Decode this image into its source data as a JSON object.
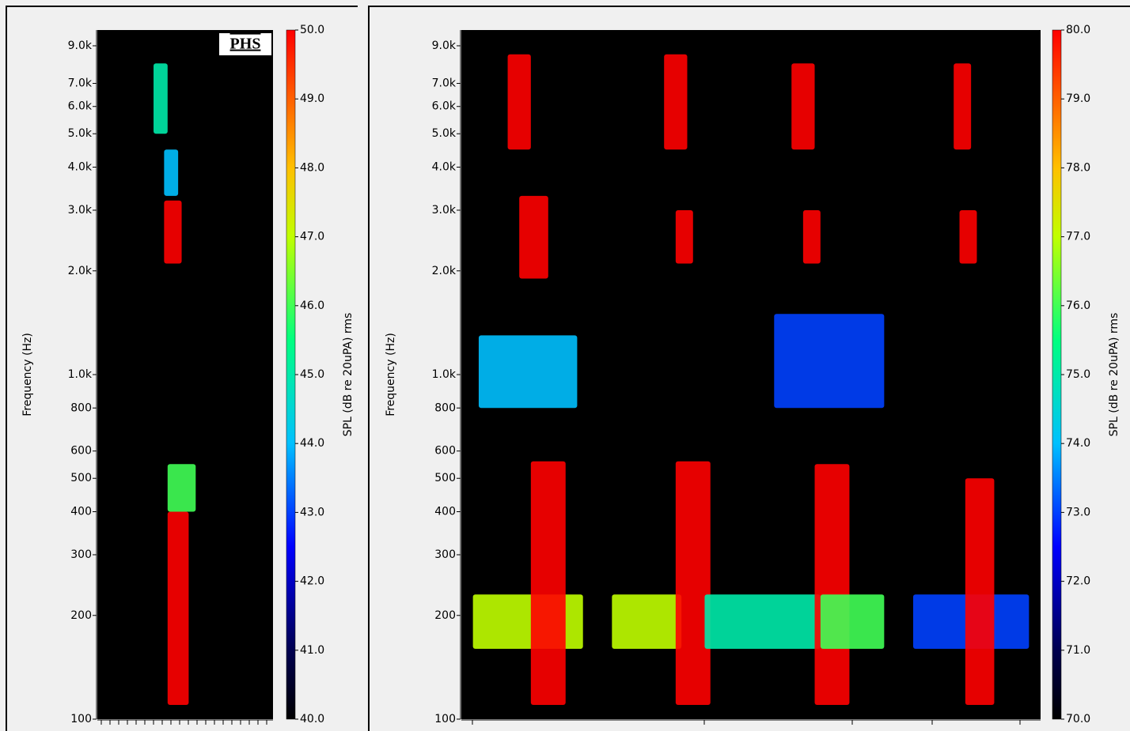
{
  "chart_data": [
    {
      "type": "spectrogram",
      "label": "PHS",
      "ylabel": "Frequency (Hz)",
      "colorbar_label": "SPL (dB re 20uPA) rms",
      "log_y": true,
      "ylim": [
        100,
        10000
      ],
      "yticks": [
        100,
        200,
        300,
        400,
        500,
        600,
        800,
        {
          "value": 1000,
          "label": "1.0k"
        },
        {
          "value": 2000,
          "label": "2.0k"
        },
        {
          "value": 3000,
          "label": "3.0k"
        },
        {
          "value": 4000,
          "label": "4.0k"
        },
        {
          "value": 5000,
          "label": "5.0k"
        },
        {
          "value": 6000,
          "label": "6.0k"
        },
        {
          "value": 7000,
          "label": "7.0k"
        },
        {
          "value": 9000,
          "label": "9.0k"
        }
      ],
      "clim": [
        40,
        50
      ],
      "cticks": [
        {
          "value": 40,
          "label": "40.0"
        },
        {
          "value": 41,
          "label": "41.0"
        },
        {
          "value": 42,
          "label": "42.0"
        },
        {
          "value": 43,
          "label": "43.0"
        },
        {
          "value": 44,
          "label": "44.0"
        },
        {
          "value": 45,
          "label": "45.0"
        },
        {
          "value": 46,
          "label": "46.0"
        },
        {
          "value": 47,
          "label": "47.0"
        },
        {
          "value": 48,
          "label": "48.0"
        },
        {
          "value": 49,
          "label": "49.0"
        },
        {
          "value": 50,
          "label": "50.0"
        }
      ],
      "xlim": [
        0,
        1
      ],
      "events": [
        {
          "t": [
            0.32,
            0.4
          ],
          "f": [
            5000,
            8000
          ],
          "level": 45
        },
        {
          "t": [
            0.38,
            0.46
          ],
          "f": [
            3300,
            4500
          ],
          "level": 44
        },
        {
          "t": [
            0.38,
            0.48
          ],
          "f": [
            2100,
            3200
          ],
          "level": 50
        },
        {
          "t": [
            0.4,
            0.52
          ],
          "f": [
            110,
            400
          ],
          "level": 50
        },
        {
          "t": [
            0.4,
            0.56
          ],
          "f": [
            400,
            550
          ],
          "level": 46
        }
      ]
    },
    {
      "type": "spectrogram",
      "ylabel": "Frequency (Hz)",
      "colorbar_label": "SPL (dB re 20uPA) rms",
      "log_y": true,
      "ylim": [
        100,
        10000
      ],
      "yticks": [
        100,
        200,
        300,
        400,
        500,
        600,
        800,
        {
          "value": 1000,
          "label": "1.0k"
        },
        {
          "value": 2000,
          "label": "2.0k"
        },
        {
          "value": 3000,
          "label": "3.0k"
        },
        {
          "value": 4000,
          "label": "4.0k"
        },
        {
          "value": 5000,
          "label": "5.0k"
        },
        {
          "value": 6000,
          "label": "6.0k"
        },
        {
          "value": 7000,
          "label": "7.0k"
        },
        {
          "value": 9000,
          "label": "9.0k"
        }
      ],
      "clim": [
        70,
        80
      ],
      "cticks": [
        {
          "value": 70,
          "label": "70.0"
        },
        {
          "value": 71,
          "label": "71.0"
        },
        {
          "value": 72,
          "label": "72.0"
        },
        {
          "value": 73,
          "label": "73.0"
        },
        {
          "value": 74,
          "label": "74.0"
        },
        {
          "value": 75,
          "label": "75.0"
        },
        {
          "value": 76,
          "label": "76.0"
        },
        {
          "value": 77,
          "label": "77.0"
        },
        {
          "value": 78,
          "label": "78.0"
        },
        {
          "value": 79,
          "label": "79.0"
        },
        {
          "value": 80,
          "label": "80.0"
        }
      ],
      "xlim": [
        0,
        1
      ],
      "events": [
        {
          "t": [
            0.02,
            0.21
          ],
          "f": [
            160,
            230
          ],
          "level": 77
        },
        {
          "t": [
            0.03,
            0.2
          ],
          "f": [
            800,
            1300
          ],
          "level": 74
        },
        {
          "t": [
            0.08,
            0.12
          ],
          "f": [
            4500,
            8500
          ],
          "level": 80
        },
        {
          "t": [
            0.1,
            0.15
          ],
          "f": [
            1900,
            3300
          ],
          "level": 80
        },
        {
          "t": [
            0.12,
            0.18
          ],
          "f": [
            110,
            560
          ],
          "level": 80
        },
        {
          "t": [
            0.26,
            0.38
          ],
          "f": [
            160,
            230
          ],
          "level": 77
        },
        {
          "t": [
            0.35,
            0.39
          ],
          "f": [
            4500,
            8500
          ],
          "level": 80
        },
        {
          "t": [
            0.37,
            0.4
          ],
          "f": [
            2100,
            3000
          ],
          "level": 80
        },
        {
          "t": [
            0.37,
            0.43
          ],
          "f": [
            110,
            560
          ],
          "level": 80
        },
        {
          "t": [
            0.42,
            0.62
          ],
          "f": [
            160,
            230
          ],
          "level": 75
        },
        {
          "t": [
            0.54,
            0.73
          ],
          "f": [
            800,
            1500
          ],
          "level": 73
        },
        {
          "t": [
            0.57,
            0.61
          ],
          "f": [
            4500,
            8000
          ],
          "level": 80
        },
        {
          "t": [
            0.59,
            0.62
          ],
          "f": [
            2100,
            3000
          ],
          "level": 80
        },
        {
          "t": [
            0.61,
            0.67
          ],
          "f": [
            110,
            550
          ],
          "level": 80
        },
        {
          "t": [
            0.62,
            0.73
          ],
          "f": [
            160,
            230
          ],
          "level": 76
        },
        {
          "t": [
            0.78,
            0.98
          ],
          "f": [
            160,
            230
          ],
          "level": 73
        },
        {
          "t": [
            0.85,
            0.88
          ],
          "f": [
            4500,
            8000
          ],
          "level": 80
        },
        {
          "t": [
            0.86,
            0.89
          ],
          "f": [
            2100,
            3000
          ],
          "level": 80
        },
        {
          "t": [
            0.87,
            0.92
          ],
          "f": [
            110,
            500
          ],
          "level": 80
        }
      ]
    }
  ]
}
